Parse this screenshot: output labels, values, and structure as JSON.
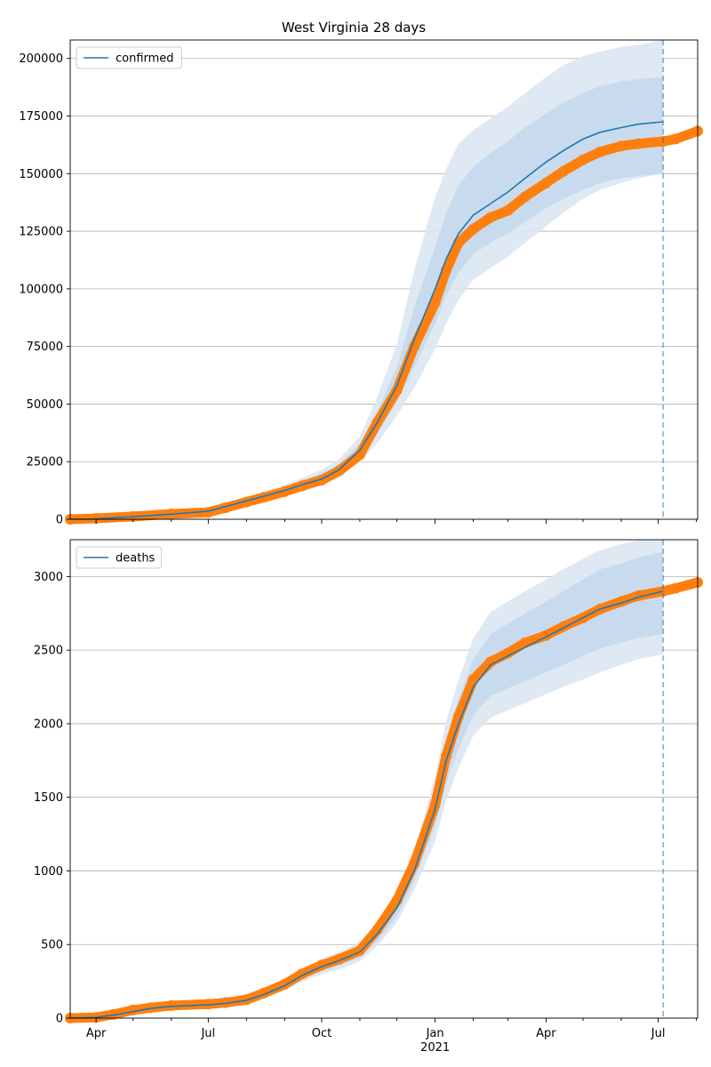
{
  "figure": {
    "title": "West Virginia 28 days"
  },
  "colors": {
    "model": "#1f77b4",
    "observed": "#ff7f0e",
    "band_outer": "#dbe7f3",
    "band_inner": "#c4d8ec",
    "grid": "#b0b0b0",
    "axis": "#000000"
  },
  "x_axis": {
    "tick_labels": [
      {
        "date": "2020-04-01",
        "label": "Apr"
      },
      {
        "date": "2020-07-01",
        "label": "Jul"
      },
      {
        "date": "2020-10-01",
        "label": "Oct"
      },
      {
        "date": "2021-01-01",
        "label": "Jan"
      },
      {
        "date": "2021-04-01",
        "label": "Apr"
      },
      {
        "date": "2021-07-01",
        "label": "Jul"
      }
    ],
    "year_label": "2021",
    "range": [
      "2020-03-11",
      "2021-08-02"
    ],
    "forecast_start": "2021-07-05"
  },
  "chart_data": [
    {
      "type": "line",
      "legend": [
        "confirmed"
      ],
      "legend_placement": "top-left",
      "grid": "horizontal",
      "ylim": [
        0,
        208000
      ],
      "yticks": [
        0,
        25000,
        50000,
        75000,
        100000,
        125000,
        150000,
        175000,
        200000
      ],
      "ytick_labels": [
        "0",
        "25000",
        "50000",
        "75000",
        "100000",
        "125000",
        "150000",
        "175000",
        "200000"
      ],
      "x": [
        "2020-03-11",
        "2020-04-01",
        "2020-05-01",
        "2020-06-01",
        "2020-07-01",
        "2020-07-15",
        "2020-08-01",
        "2020-08-15",
        "2020-09-01",
        "2020-09-15",
        "2020-10-01",
        "2020-10-15",
        "2020-11-01",
        "2020-11-15",
        "2020-12-01",
        "2020-12-15",
        "2021-01-01",
        "2021-01-10",
        "2021-01-20",
        "2021-02-01",
        "2021-02-15",
        "2021-03-01",
        "2021-03-15",
        "2021-04-01",
        "2021-04-15",
        "2021-05-01",
        "2021-05-15",
        "2021-06-01",
        "2021-06-15",
        "2021-07-05",
        "2021-07-15",
        "2021-08-02"
      ],
      "series": [
        {
          "name": "confirmed",
          "role": "model",
          "values": [
            0,
            200,
            1100,
            2200,
            3500,
            5500,
            8000,
            10000,
            12500,
            15000,
            17500,
            21500,
            30000,
            42000,
            58000,
            78000,
            100000,
            113000,
            124000,
            132000,
            137000,
            142000,
            148000,
            155000,
            160000,
            165000,
            168000,
            170000,
            171500,
            172500,
            null,
            null
          ]
        },
        {
          "role": "observed",
          "values": [
            0,
            400,
            1200,
            2300,
            3000,
            5000,
            7500,
            9500,
            12000,
            14500,
            17000,
            21000,
            28000,
            42000,
            56000,
            75000,
            94000,
            108000,
            120000,
            126000,
            131000,
            134000,
            140000,
            146000,
            151000,
            156000,
            159500,
            162000,
            163000,
            164000,
            165000,
            168500
          ]
        }
      ],
      "bands": {
        "inner": [
          [
            0,
            0
          ],
          [
            150,
            300
          ],
          [
            900,
            1300
          ],
          [
            1900,
            2500
          ],
          [
            3000,
            4000
          ],
          [
            4800,
            6200
          ],
          [
            7000,
            9000
          ],
          [
            9000,
            11000
          ],
          [
            11000,
            14000
          ],
          [
            13000,
            17000
          ],
          [
            15500,
            20000
          ],
          [
            19500,
            24000
          ],
          [
            27000,
            33000
          ],
          [
            37000,
            47000
          ],
          [
            51000,
            66000
          ],
          [
            66000,
            92000
          ],
          [
            85000,
            118000
          ],
          [
            97000,
            133000
          ],
          [
            107000,
            145000
          ],
          [
            115000,
            153000
          ],
          [
            120000,
            159000
          ],
          [
            124000,
            164000
          ],
          [
            129000,
            170000
          ],
          [
            135000,
            176000
          ],
          [
            139000,
            181000
          ],
          [
            143000,
            185000
          ],
          [
            146000,
            188000
          ],
          [
            148000,
            190000
          ],
          [
            149000,
            191000
          ],
          [
            150000,
            192000
          ],
          [
            null,
            null
          ],
          [
            null,
            null
          ]
        ],
        "outer": [
          [
            0,
            0
          ],
          [
            100,
            350
          ],
          [
            800,
            1500
          ],
          [
            1700,
            2800
          ],
          [
            2800,
            4400
          ],
          [
            4400,
            6800
          ],
          [
            6400,
            9800
          ],
          [
            8300,
            12000
          ],
          [
            10200,
            15000
          ],
          [
            12000,
            18000
          ],
          [
            14500,
            21500
          ],
          [
            18000,
            26000
          ],
          [
            25000,
            36000
          ],
          [
            33000,
            53000
          ],
          [
            45000,
            76000
          ],
          [
            57000,
            108000
          ],
          [
            74000,
            140000
          ],
          [
            85000,
            152000
          ],
          [
            95000,
            163000
          ],
          [
            104000,
            169000
          ],
          [
            109000,
            174000
          ],
          [
            114000,
            179000
          ],
          [
            120000,
            185000
          ],
          [
            127000,
            192000
          ],
          [
            133000,
            197000
          ],
          [
            139000,
            201000
          ],
          [
            143000,
            203000
          ],
          [
            146000,
            205000
          ],
          [
            148000,
            206000
          ],
          [
            150000,
            208000
          ],
          [
            null,
            null
          ],
          [
            null,
            null
          ]
        ]
      }
    },
    {
      "type": "line",
      "legend": [
        "deaths"
      ],
      "legend_placement": "top-left",
      "grid": "horizontal",
      "ylim": [
        0,
        3250
      ],
      "yticks": [
        0,
        500,
        1000,
        1500,
        2000,
        2500,
        3000
      ],
      "ytick_labels": [
        "0",
        "500",
        "1000",
        "1500",
        "2000",
        "2500",
        "3000"
      ],
      "x": [
        "2020-03-11",
        "2020-04-01",
        "2020-04-15",
        "2020-05-01",
        "2020-05-15",
        "2020-06-01",
        "2020-07-01",
        "2020-07-15",
        "2020-08-01",
        "2020-08-15",
        "2020-09-01",
        "2020-09-15",
        "2020-10-01",
        "2020-10-15",
        "2020-11-01",
        "2020-11-15",
        "2020-12-01",
        "2020-12-15",
        "2021-01-01",
        "2021-01-10",
        "2021-01-20",
        "2021-02-01",
        "2021-02-15",
        "2021-03-01",
        "2021-03-15",
        "2021-04-01",
        "2021-04-15",
        "2021-05-01",
        "2021-05-15",
        "2021-06-01",
        "2021-06-15",
        "2021-07-05",
        "2021-07-15",
        "2021-08-02"
      ],
      "series": [
        {
          "name": "deaths",
          "role": "model",
          "values": [
            0,
            5,
            20,
            45,
            65,
            80,
            90,
            100,
            120,
            160,
            220,
            290,
            350,
            390,
            450,
            570,
            750,
            1000,
            1420,
            1750,
            2000,
            2250,
            2400,
            2460,
            2520,
            2590,
            2650,
            2720,
            2780,
            2820,
            2860,
            2900,
            null,
            null
          ]
        },
        {
          "role": "observed",
          "values": [
            0,
            5,
            25,
            55,
            70,
            85,
            95,
            105,
            125,
            170,
            230,
            300,
            360,
            400,
            460,
            600,
            800,
            1050,
            1450,
            1780,
            2050,
            2300,
            2420,
            2480,
            2550,
            2600,
            2660,
            2720,
            2780,
            2830,
            2870,
            2900,
            2920,
            2960
          ]
        }
      ],
      "bands": {
        "inner": [
          [
            0,
            0
          ],
          [
            3,
            8
          ],
          [
            15,
            26
          ],
          [
            38,
            52
          ],
          [
            56,
            74
          ],
          [
            70,
            90
          ],
          [
            80,
            100
          ],
          [
            90,
            110
          ],
          [
            108,
            132
          ],
          [
            145,
            175
          ],
          [
            200,
            240
          ],
          [
            265,
            315
          ],
          [
            320,
            380
          ],
          [
            355,
            425
          ],
          [
            410,
            490
          ],
          [
            520,
            620
          ],
          [
            690,
            810
          ],
          [
            930,
            1070
          ],
          [
            1300,
            1540
          ],
          [
            1600,
            1900
          ],
          [
            1830,
            2170
          ],
          [
            2060,
            2440
          ],
          [
            2190,
            2610
          ],
          [
            2240,
            2680
          ],
          [
            2290,
            2750
          ],
          [
            2350,
            2830
          ],
          [
            2400,
            2900
          ],
          [
            2460,
            2980
          ],
          [
            2510,
            3050
          ],
          [
            2550,
            3090
          ],
          [
            2580,
            3130
          ],
          [
            2610,
            3170
          ],
          [
            null,
            null
          ],
          [
            null,
            null
          ]
        ],
        "outer": [
          [
            0,
            0
          ],
          [
            2,
            10
          ],
          [
            12,
            30
          ],
          [
            33,
            58
          ],
          [
            50,
            80
          ],
          [
            64,
            96
          ],
          [
            74,
            106
          ],
          [
            84,
            116
          ],
          [
            100,
            140
          ],
          [
            135,
            185
          ],
          [
            185,
            255
          ],
          [
            245,
            335
          ],
          [
            300,
            400
          ],
          [
            330,
            450
          ],
          [
            385,
            515
          ],
          [
            490,
            650
          ],
          [
            650,
            850
          ],
          [
            870,
            1130
          ],
          [
            1200,
            1640
          ],
          [
            1480,
            2020
          ],
          [
            1700,
            2300
          ],
          [
            1920,
            2580
          ],
          [
            2040,
            2760
          ],
          [
            2090,
            2830
          ],
          [
            2140,
            2900
          ],
          [
            2200,
            2980
          ],
          [
            2250,
            3050
          ],
          [
            2300,
            3120
          ],
          [
            2350,
            3180
          ],
          [
            2400,
            3220
          ],
          [
            2440,
            3250
          ],
          [
            2470,
            3250
          ],
          [
            null,
            null
          ],
          [
            null,
            null
          ]
        ]
      }
    }
  ]
}
